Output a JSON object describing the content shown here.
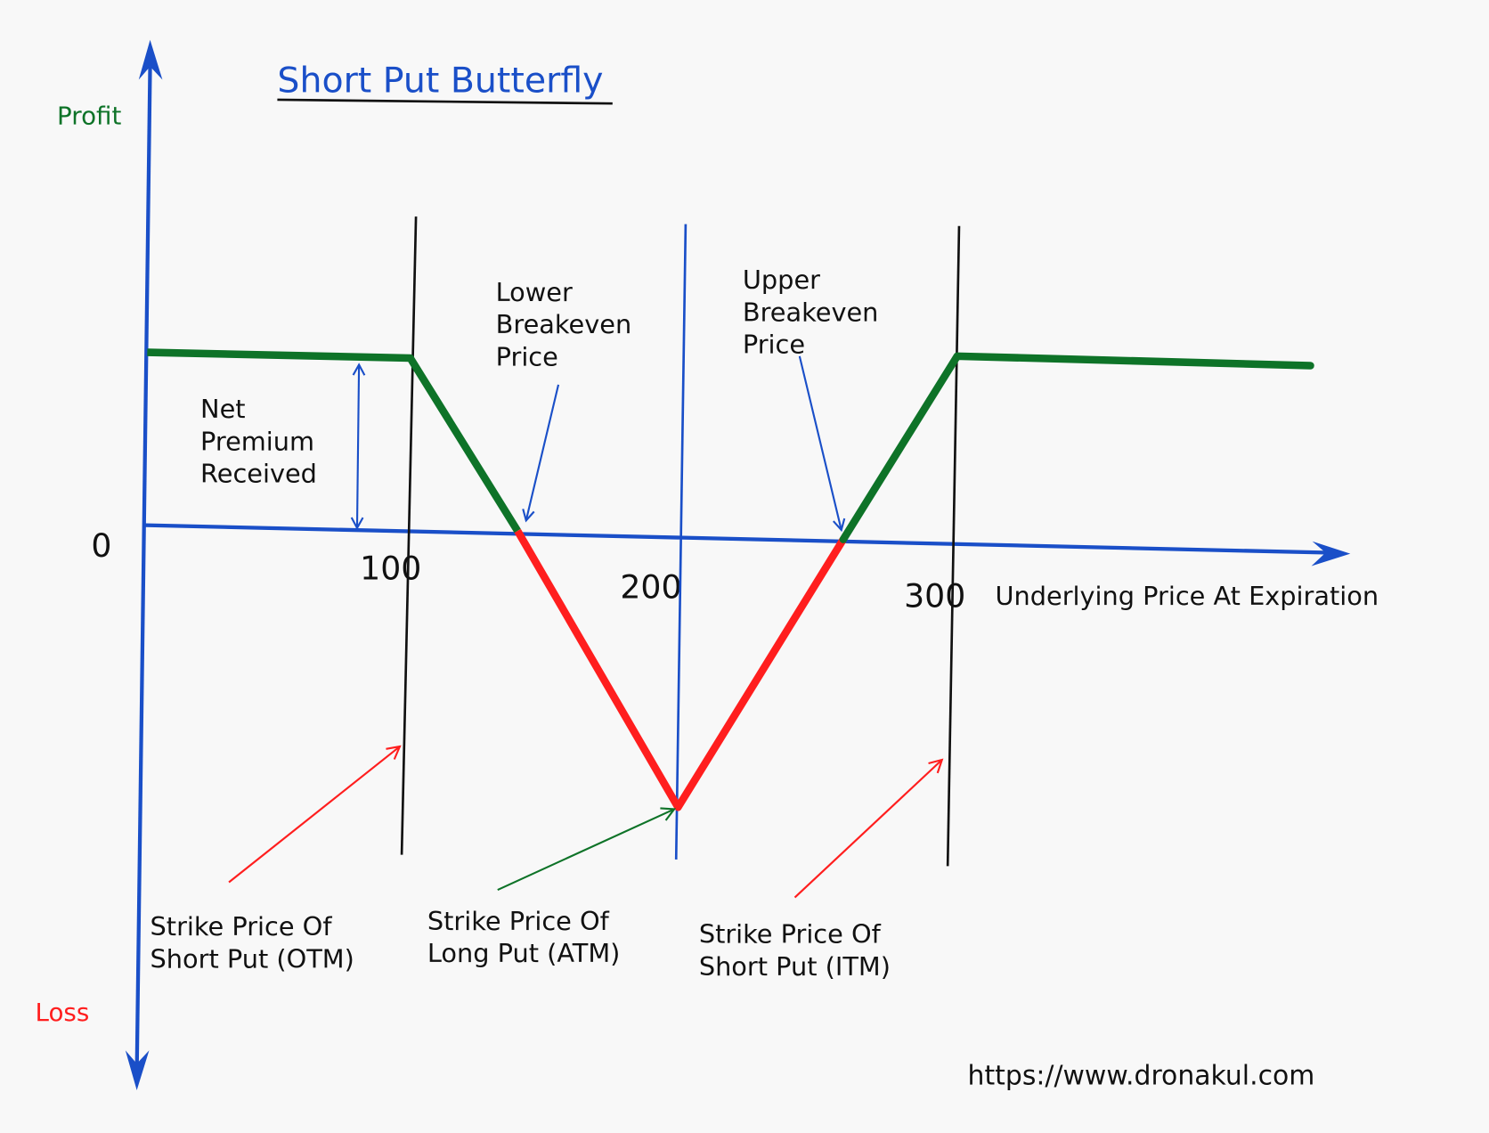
{
  "title": "Short Put Butterfly",
  "y_axis": {
    "top_label": "Profit",
    "bottom_label": "Loss",
    "zero_label": "0"
  },
  "x_axis": {
    "label": "Underlying Price At Expiration",
    "ticks": [
      "100",
      "200",
      "300"
    ]
  },
  "annotations": {
    "net_premium": [
      "Net",
      "Premium",
      "Received"
    ],
    "lower_breakeven": [
      "Lower",
      "Breakeven",
      "Price"
    ],
    "upper_breakeven": [
      "Upper",
      "Breakeven",
      "Price"
    ],
    "strike_otm": [
      "Strike Price Of",
      "Short Put (OTM)"
    ],
    "strike_atm": [
      "Strike Price Of",
      "Long Put (ATM)"
    ],
    "strike_itm": [
      "Strike Price Of",
      "Short Put (ITM)"
    ]
  },
  "footer_url": "https://www.dronakul.com",
  "colors": {
    "axis": "#1a4fc8",
    "profit": "#0e7328",
    "loss": "#ff1e1e",
    "text": "#111111"
  }
}
